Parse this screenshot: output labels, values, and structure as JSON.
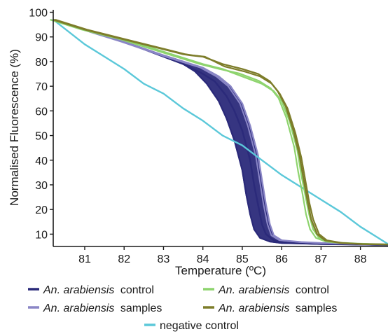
{
  "chart_data": {
    "type": "line",
    "title": "",
    "xlabel": "Temperature (ºC)",
    "ylabel": "Normalised Fluorescence (%)",
    "xlim": [
      80.2,
      88.7
    ],
    "ylim": [
      5,
      101
    ],
    "x_ticks": [
      81,
      82,
      83,
      84,
      85,
      86,
      87,
      88
    ],
    "y_ticks": [
      10,
      20,
      30,
      40,
      50,
      60,
      70,
      80,
      90,
      100
    ],
    "grid": false,
    "legend_position": "bottom",
    "series": [
      {
        "name": "control",
        "legend_prefix": "An. arabiensis",
        "color": "#2b2a7a",
        "points": [
          [
            80.2,
            97
          ],
          [
            81,
            93
          ],
          [
            82,
            88
          ],
          [
            83,
            82
          ],
          [
            83.5,
            79
          ],
          [
            84,
            75
          ],
          [
            84.3,
            72
          ],
          [
            84.6,
            66
          ],
          [
            84.8,
            60
          ],
          [
            85,
            52
          ],
          [
            85.2,
            40
          ],
          [
            85.3,
            30
          ],
          [
            85.4,
            22
          ],
          [
            85.5,
            14
          ],
          [
            85.6,
            10
          ],
          [
            85.8,
            7.5
          ],
          [
            86,
            6.8
          ],
          [
            86.5,
            6.3
          ],
          [
            87,
            6
          ],
          [
            88,
            5.8
          ],
          [
            88.7,
            5.6
          ]
        ],
        "band": [
          [
            [
              80.2,
              97
            ],
            [
              81,
              93
            ],
            [
              82,
              88
            ],
            [
              83,
              82
            ],
            [
              83.5,
              79
            ],
            [
              83.8,
              76
            ],
            [
              84.1,
              71
            ],
            [
              84.4,
              64
            ],
            [
              84.6,
              57
            ],
            [
              84.8,
              48
            ],
            [
              85,
              36
            ],
            [
              85.1,
              26
            ],
            [
              85.2,
              18
            ],
            [
              85.3,
              12
            ],
            [
              85.45,
              8.5
            ],
            [
              85.7,
              7
            ],
            [
              86,
              6.4
            ],
            [
              87,
              6
            ],
            [
              88,
              5.8
            ],
            [
              88.7,
              5.6
            ]
          ],
          [
            [
              80.2,
              97
            ],
            [
              81,
              93
            ],
            [
              82,
              88
            ],
            [
              83,
              82.5
            ],
            [
              83.5,
              80
            ],
            [
              84,
              77
            ],
            [
              84.4,
              74
            ],
            [
              84.7,
              70
            ],
            [
              84.9,
              65
            ],
            [
              85.1,
              58
            ],
            [
              85.3,
              48
            ],
            [
              85.4,
              40
            ],
            [
              85.5,
              30
            ],
            [
              85.6,
              20
            ],
            [
              85.7,
              13
            ],
            [
              85.8,
              9
            ],
            [
              86,
              7
            ],
            [
              86.5,
              6.4
            ],
            [
              87,
              6.1
            ],
            [
              88,
              5.8
            ],
            [
              88.7,
              5.6
            ]
          ]
        ]
      },
      {
        "name": "samples",
        "legend_prefix": "An. arabiensis",
        "color": "#8a86c6",
        "points": [
          [
            80.2,
            97
          ],
          [
            81,
            93
          ],
          [
            82,
            88
          ],
          [
            83,
            82.5
          ],
          [
            83.5,
            80
          ],
          [
            84,
            77.5
          ],
          [
            84.4,
            74
          ],
          [
            84.7,
            70
          ],
          [
            85,
            63
          ],
          [
            85.2,
            54
          ],
          [
            85.4,
            42
          ],
          [
            85.5,
            32
          ],
          [
            85.6,
            22
          ],
          [
            85.7,
            14
          ],
          [
            85.8,
            9.5
          ],
          [
            86,
            7.5
          ],
          [
            86.5,
            6.8
          ],
          [
            87,
            6.4
          ],
          [
            88,
            6
          ],
          [
            88.7,
            5.8
          ]
        ]
      },
      {
        "name": "control",
        "legend_prefix": "An. arabiensis",
        "color": "#8ed46e",
        "points": [
          [
            80.2,
            97
          ],
          [
            81,
            93
          ],
          [
            82,
            89
          ],
          [
            83,
            84
          ],
          [
            84,
            79
          ],
          [
            84.5,
            77
          ],
          [
            85,
            74
          ],
          [
            85.5,
            71
          ],
          [
            85.8,
            68
          ],
          [
            86,
            64
          ],
          [
            86.2,
            56
          ],
          [
            86.4,
            44
          ],
          [
            86.5,
            34
          ],
          [
            86.6,
            26
          ],
          [
            86.7,
            18
          ],
          [
            86.8,
            12
          ],
          [
            86.95,
            8.5
          ],
          [
            87.2,
            7
          ],
          [
            87.5,
            6.5
          ],
          [
            88,
            6.1
          ],
          [
            88.7,
            5.8
          ]
        ]
      },
      {
        "name": "samples",
        "legend_prefix": "An. arabiensis",
        "color": "#7d7d2a",
        "points": [
          [
            80.2,
            97
          ],
          [
            81,
            93
          ],
          [
            82,
            89
          ],
          [
            83,
            85
          ],
          [
            83.5,
            83
          ],
          [
            83.7,
            82.5
          ],
          [
            84,
            82
          ],
          [
            84.5,
            79
          ],
          [
            85,
            77
          ],
          [
            85.4,
            75
          ],
          [
            85.7,
            72
          ],
          [
            85.9,
            68
          ],
          [
            86.1,
            62
          ],
          [
            86.3,
            52
          ],
          [
            86.45,
            42
          ],
          [
            86.55,
            33
          ],
          [
            86.65,
            24
          ],
          [
            86.75,
            16
          ],
          [
            86.9,
            10
          ],
          [
            87.1,
            7.5
          ],
          [
            87.5,
            6.4
          ],
          [
            88,
            6
          ],
          [
            88.7,
            5.8
          ]
        ]
      },
      {
        "name": "negative control",
        "color": "#5bc8d9",
        "points": [
          [
            80.2,
            97
          ],
          [
            80.6,
            92
          ],
          [
            81,
            87
          ],
          [
            81.5,
            82
          ],
          [
            82,
            77
          ],
          [
            82.5,
            71
          ],
          [
            83,
            67
          ],
          [
            83.5,
            61
          ],
          [
            84,
            56
          ],
          [
            84.5,
            50
          ],
          [
            85,
            46
          ],
          [
            85.5,
            40
          ],
          [
            86,
            34
          ],
          [
            86.5,
            29
          ],
          [
            87,
            24
          ],
          [
            87.5,
            19
          ],
          [
            88,
            13
          ],
          [
            88.4,
            9
          ],
          [
            88.7,
            6
          ]
        ]
      }
    ]
  }
}
